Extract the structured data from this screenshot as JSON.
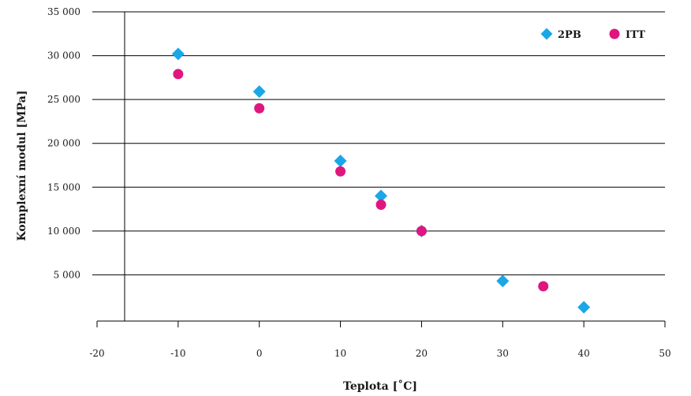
{
  "chart_data": {
    "type": "scatter",
    "xlabel": "Teplota [˚C]",
    "ylabel": "Komplexní modul [MPa]",
    "xlim": [
      -20,
      50
    ],
    "ylim": [
      0,
      35000
    ],
    "x_ticks": [
      -20,
      -10,
      0,
      10,
      20,
      30,
      40,
      50
    ],
    "x_tick_labels": [
      "-20",
      "-10",
      "0",
      "10",
      "20",
      "30",
      "40",
      "50"
    ],
    "y_ticks": [
      5000,
      10000,
      15000,
      20000,
      25000,
      30000,
      35000
    ],
    "y_tick_labels": [
      "5 000",
      "10 000",
      "15 000",
      "20 000",
      "25 000",
      "30 000",
      "35 000"
    ],
    "grid": "horizontal",
    "legend_position": "top-right",
    "series": [
      {
        "name": "2PB",
        "marker": "diamond",
        "color": "#1aa7e8",
        "x": [
          -10,
          0,
          10,
          15,
          20,
          30,
          40
        ],
        "y": [
          30200,
          25900,
          18000,
          14000,
          10000,
          4300,
          1300
        ]
      },
      {
        "name": "ITT",
        "marker": "circle",
        "color": "#e0167e",
        "x": [
          -10,
          0,
          10,
          15,
          20,
          35
        ],
        "y": [
          27900,
          24000,
          16800,
          13000,
          10000,
          3700
        ]
      }
    ]
  }
}
